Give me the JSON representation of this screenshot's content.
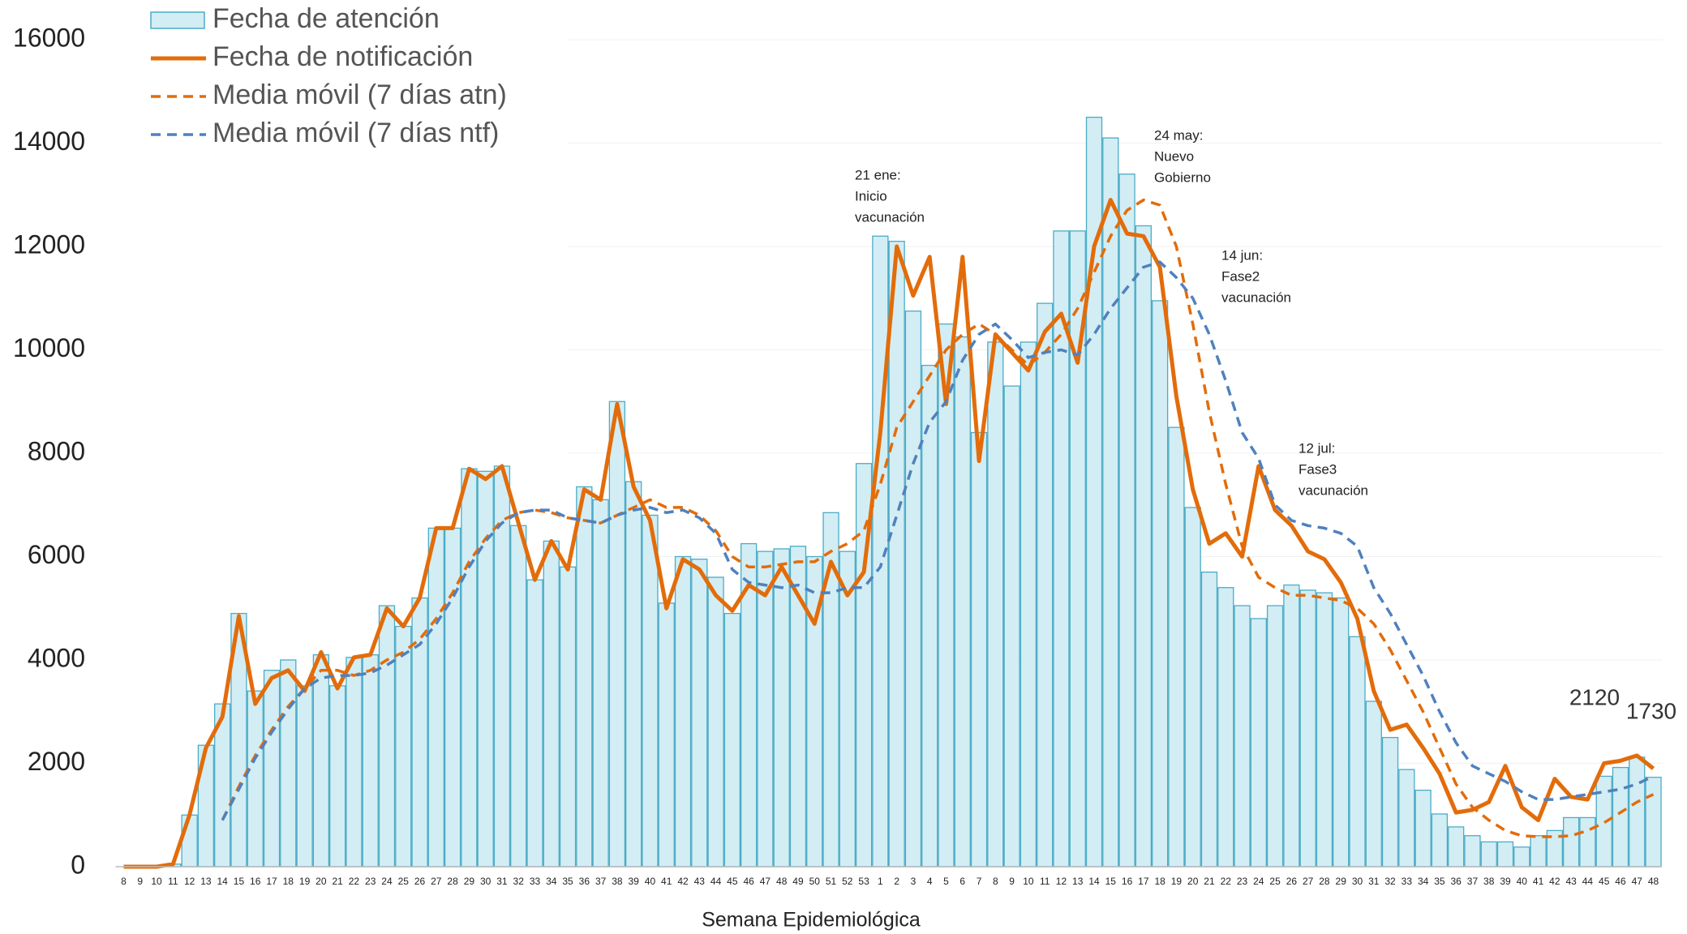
{
  "chart_data": {
    "type": "bar",
    "x_label": "Semana Epidemiológica",
    "categories": [
      "8",
      "9",
      "10",
      "11",
      "12",
      "13",
      "14",
      "15",
      "16",
      "17",
      "18",
      "19",
      "20",
      "21",
      "22",
      "23",
      "24",
      "25",
      "26",
      "27",
      "28",
      "29",
      "30",
      "31",
      "32",
      "33",
      "34",
      "35",
      "36",
      "37",
      "38",
      "39",
      "40",
      "41",
      "42",
      "43",
      "44",
      "45",
      "46",
      "47",
      "48",
      "49",
      "50",
      "51",
      "52",
      "53",
      "1",
      "2",
      "3",
      "4",
      "5",
      "6",
      "7",
      "8",
      "9",
      "10",
      "11",
      "12",
      "13",
      "14",
      "15",
      "16",
      "17",
      "18",
      "19",
      "20",
      "21",
      "22",
      "23",
      "24",
      "25",
      "26",
      "27",
      "28",
      "29",
      "30",
      "31",
      "32",
      "33",
      "34",
      "35",
      "36",
      "37",
      "38",
      "39",
      "40",
      "41",
      "42",
      "43",
      "44",
      "45",
      "46",
      "47",
      "48"
    ],
    "ylim": [
      0,
      16000
    ],
    "yticks": [
      0,
      2000,
      4000,
      6000,
      8000,
      10000,
      12000,
      14000,
      16000
    ],
    "grid": true,
    "series": [
      {
        "name": "Fecha de atención",
        "type": "bar",
        "color": "#d3edf4",
        "edge": "#4bacc6",
        "values": [
          0,
          0,
          0,
          50,
          1000,
          2350,
          3150,
          4900,
          3400,
          3800,
          4000,
          3500,
          4100,
          3500,
          4050,
          4100,
          5050,
          4650,
          5200,
          6550,
          6550,
          7700,
          7650,
          7750,
          6600,
          5550,
          6300,
          5800,
          7350,
          7100,
          9000,
          7450,
          6800,
          5100,
          6000,
          5950,
          5600,
          4900,
          6250,
          6100,
          6150,
          6200,
          6000,
          6850,
          6100,
          7800,
          12200,
          12100,
          10750,
          9700,
          10500,
          10250,
          8400,
          10150,
          9300,
          10150,
          10900,
          12300,
          12300,
          14500,
          14100,
          13400,
          12400,
          10950,
          8500,
          6950,
          5700,
          5400,
          5050,
          4800,
          5050,
          5450,
          5350,
          5300,
          5200,
          4450,
          3200,
          2500,
          1880,
          1480,
          1020,
          770,
          600,
          480,
          480,
          380,
          600,
          700,
          950,
          950,
          1750,
          1920,
          2120,
          1730
        ]
      },
      {
        "name": "Fecha de notificación",
        "type": "line",
        "color": "#e36c0a",
        "dashed": false,
        "values": [
          0,
          0,
          0,
          50,
          1000,
          2300,
          2900,
          4850,
          3150,
          3650,
          3800,
          3400,
          4150,
          3450,
          4050,
          4100,
          5000,
          4650,
          5200,
          6550,
          6550,
          7700,
          7500,
          7750,
          6650,
          5550,
          6300,
          5750,
          7300,
          7100,
          8950,
          7350,
          6700,
          5000,
          5950,
          5750,
          5250,
          4950,
          5450,
          5250,
          5800,
          5250,
          4700,
          5900,
          5250,
          5700,
          8400,
          12000,
          11050,
          11800,
          8950,
          11800,
          7850,
          10300,
          9950,
          9600,
          10350,
          10700,
          9750,
          12000,
          12900,
          12250,
          12200,
          11600,
          9100,
          7300,
          6250,
          6450,
          6000,
          7750,
          6900,
          6600,
          6100,
          5950,
          5500,
          4800,
          3400,
          2650,
          2750,
          2300,
          1800,
          1050,
          1100,
          1250,
          1950,
          1150,
          900,
          1700,
          1350,
          1300,
          2000,
          2050,
          2150,
          1900
        ]
      },
      {
        "name": "Media móvil (7 días atn)",
        "type": "line",
        "color": "#e36c0a",
        "dashed": true,
        "values": [
          null,
          null,
          null,
          null,
          null,
          null,
          900,
          1550,
          2150,
          2650,
          3100,
          3450,
          3800,
          3800,
          3700,
          3800,
          4000,
          4150,
          4400,
          4800,
          5300,
          5900,
          6350,
          6700,
          6850,
          6900,
          6850,
          6750,
          6700,
          6650,
          6800,
          6950,
          7100,
          6950,
          6950,
          6800,
          6500,
          6000,
          5800,
          5800,
          5850,
          5900,
          5900,
          6100,
          6250,
          6500,
          7400,
          8500,
          9000,
          9500,
          10000,
          10300,
          10500,
          10300,
          10000,
          9700,
          9950,
          10300,
          10800,
          11500,
          12200,
          12700,
          12900,
          12800,
          12000,
          10500,
          8800,
          7400,
          6200,
          5600,
          5400,
          5250,
          5250,
          5200,
          5150,
          5000,
          4700,
          4200,
          3600,
          3000,
          2300,
          1600,
          1150,
          900,
          700,
          600,
          580,
          580,
          600,
          700,
          850,
          1050,
          1250,
          1400
        ]
      },
      {
        "name": "Media móvil (7 días ntf)",
        "type": "line",
        "color": "#4f81bd",
        "dashed": true,
        "values": [
          null,
          null,
          null,
          null,
          null,
          null,
          900,
          1500,
          2100,
          2600,
          3050,
          3450,
          3650,
          3700,
          3700,
          3750,
          3900,
          4100,
          4300,
          4700,
          5200,
          5800,
          6300,
          6650,
          6850,
          6900,
          6900,
          6750,
          6700,
          6650,
          6800,
          6900,
          6950,
          6850,
          6900,
          6750,
          6450,
          5750,
          5500,
          5450,
          5400,
          5450,
          5300,
          5300,
          5400,
          5400,
          5800,
          6800,
          7800,
          8600,
          9000,
          9800,
          10300,
          10500,
          10200,
          9850,
          9950,
          10000,
          9900,
          10300,
          10800,
          11200,
          11600,
          11700,
          11400,
          11000,
          10300,
          9400,
          8400,
          7900,
          7000,
          6700,
          6600,
          6550,
          6450,
          6200,
          5400,
          4900,
          4300,
          3700,
          3000,
          2400,
          1950,
          1800,
          1650,
          1450,
          1300,
          1300,
          1350,
          1400,
          1450,
          1500,
          1600,
          1750
        ]
      }
    ],
    "annotations": [
      {
        "lines": [
          "21 ene:",
          "Inicio",
          "vacunación"
        ]
      },
      {
        "lines": [
          "24 may:",
          "Nuevo",
          "Gobierno"
        ]
      },
      {
        "lines": [
          "14 jun:",
          "Fase2",
          "vacunación"
        ]
      },
      {
        "lines": [
          "12 jul:",
          "Fase3",
          "vacunación"
        ]
      }
    ]
  }
}
